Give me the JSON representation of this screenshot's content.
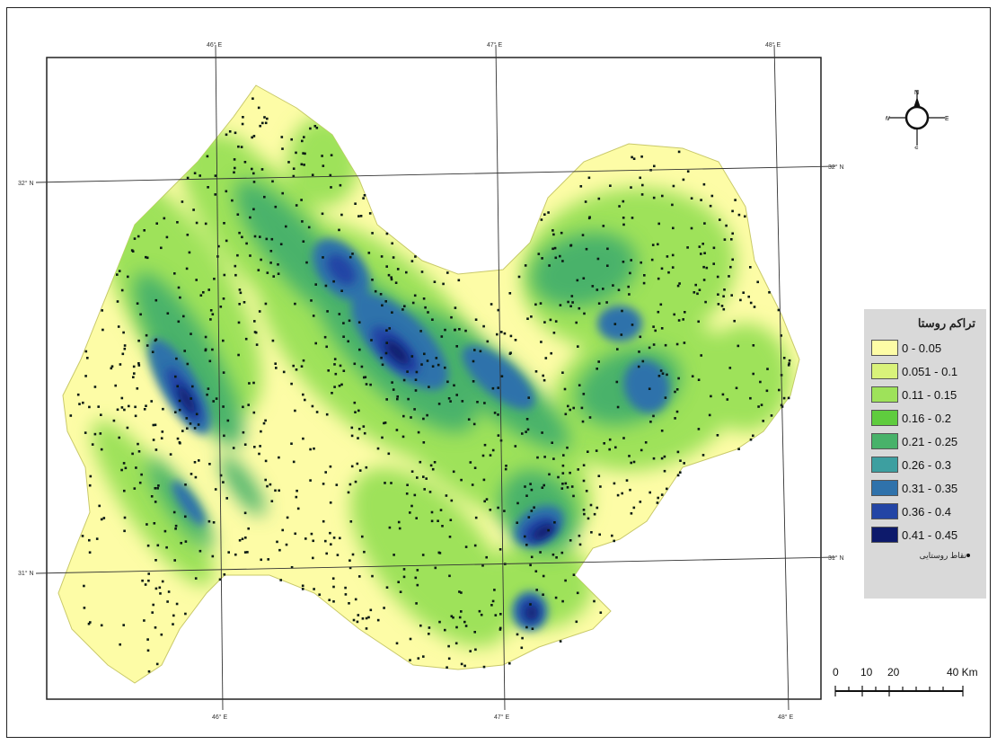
{
  "graticule": {
    "top_labels": [
      "46° E",
      "47° E",
      "48° E"
    ],
    "bottom_labels": [
      "46° E",
      "47° E",
      "48° E"
    ],
    "left_labels": [
      "32° N",
      "31° N"
    ],
    "right_labels": [
      "32° N",
      "31° N"
    ]
  },
  "north_arrow": {
    "n": "N",
    "s": "S",
    "e": "E",
    "w": "W"
  },
  "legend": {
    "title": "تراکم روستا",
    "classes": [
      {
        "label": "0 - 0.05",
        "color": "#fdfca6"
      },
      {
        "label": "0.051 - 0.1",
        "color": "#d9f27a"
      },
      {
        "label": "0.11 - 0.15",
        "color": "#9ee25a"
      },
      {
        "label": "0.16 - 0.2",
        "color": "#5fcc3e"
      },
      {
        "label": "0.21 - 0.25",
        "color": "#48b26a"
      },
      {
        "label": "0.26 - 0.3",
        "color": "#3d9fa0"
      },
      {
        "label": "0.31 - 0.35",
        "color": "#2f72ab"
      },
      {
        "label": "0.36 - 0.4",
        "color": "#2345a5"
      },
      {
        "label": "0.41 - 0.45",
        "color": "#0d1a6b"
      }
    ],
    "points_label": "نقاط روستایی"
  },
  "scale_bar": {
    "ticks": [
      "0",
      "10",
      "20",
      "40 Km"
    ]
  }
}
